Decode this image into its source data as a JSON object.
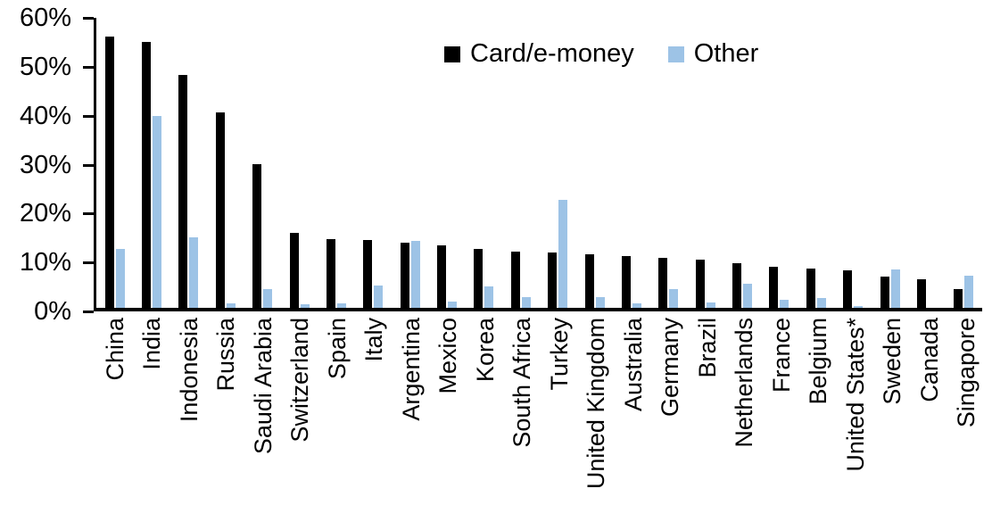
{
  "legend": {
    "items": [
      {
        "label": "Card/e-money",
        "color": "#000000"
      },
      {
        "label": "Other",
        "color": "#9DC3E6"
      }
    ]
  },
  "chart_data": {
    "type": "bar",
    "title": "",
    "xlabel": "",
    "ylabel": "",
    "ylim": [
      0,
      60
    ],
    "grid": false,
    "legend_position": "top-center",
    "y_tick_labels": [
      "60%",
      "50%",
      "40%",
      "30%",
      "20%",
      "10%",
      "0%"
    ],
    "categories": [
      "China",
      "India",
      "Indonesia",
      "Russia",
      "Saudi Arabia",
      "Switzerland",
      "Spain",
      "Italy",
      "Argentina",
      "Mexico",
      "Korea",
      "South Africa",
      "Turkey",
      "United Kingdom",
      "Australia",
      "Germany",
      "Brazil",
      "Netherlands",
      "France",
      "Belgium",
      "United States*",
      "Sweden",
      "Canada",
      "Singapore"
    ],
    "series": [
      {
        "name": "Card/e-money",
        "color": "#000000",
        "values": [
          56.2,
          55.0,
          48.2,
          40.5,
          29.8,
          15.6,
          14.2,
          14.1,
          13.4,
          12.9,
          12.2,
          11.7,
          11.5,
          11.0,
          10.7,
          10.4,
          9.9,
          9.2,
          8.5,
          8.1,
          7.8,
          6.5,
          5.9,
          3.8
        ]
      },
      {
        "name": "Other",
        "color": "#9DC3E6",
        "values": [
          12.2,
          39.7,
          14.5,
          1.0,
          3.9,
          0.8,
          1.0,
          4.6,
          13.8,
          1.3,
          4.5,
          2.3,
          22.4,
          2.3,
          1.0,
          3.9,
          1.2,
          4.9,
          1.6,
          2.0,
          0.3,
          8.0,
          0.0,
          6.6
        ]
      }
    ]
  }
}
